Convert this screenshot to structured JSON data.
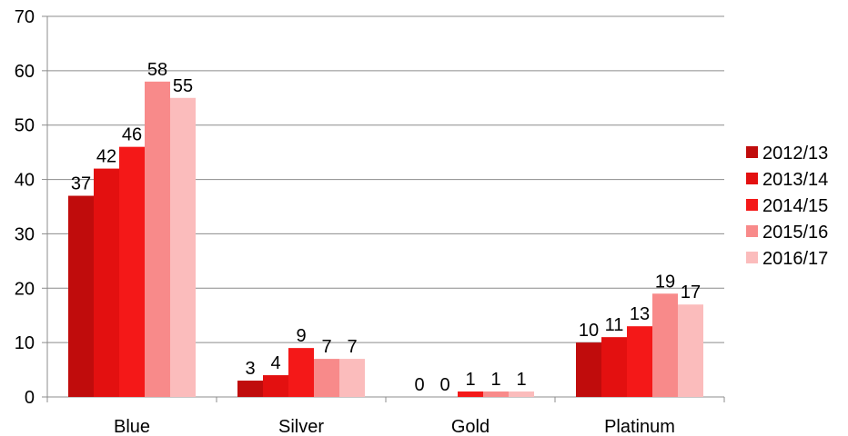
{
  "chart_data": {
    "type": "bar",
    "title": "",
    "xlabel": "",
    "ylabel": "",
    "categories": [
      "Blue",
      "Silver",
      "Gold",
      "Platinum"
    ],
    "ylim": [
      0,
      70
    ],
    "yticks": [
      "0",
      "10",
      "20",
      "30",
      "40",
      "50",
      "60",
      "70"
    ],
    "grid": true,
    "legend_position": "right",
    "series": [
      {
        "name": "2012/13",
        "color": "#c00c0c",
        "values": [
          37,
          3,
          0,
          10
        ]
      },
      {
        "name": "2013/14",
        "color": "#e31010",
        "values": [
          42,
          4,
          0,
          11
        ]
      },
      {
        "name": "2014/15",
        "color": "#f41818",
        "values": [
          46,
          9,
          1,
          13
        ]
      },
      {
        "name": "2015/16",
        "color": "#f88a8a",
        "values": [
          58,
          7,
          1,
          19
        ]
      },
      {
        "name": "2016/17",
        "color": "#fbbcbc",
        "values": [
          55,
          7,
          1,
          17
        ]
      }
    ]
  }
}
